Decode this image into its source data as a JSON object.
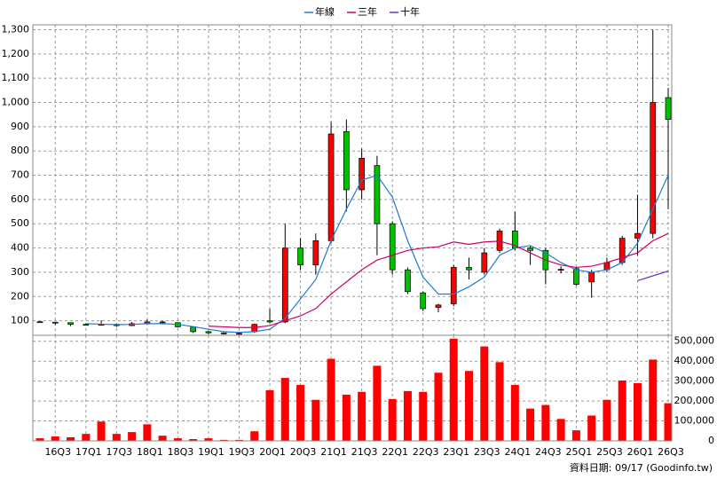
{
  "chart_data": [
    {
      "type": "candlestick",
      "categories": [
        null,
        "16Q3",
        null,
        "17Q1",
        null,
        "17Q3",
        null,
        "18Q1",
        null,
        "18Q3",
        null,
        "19Q1",
        null,
        "19Q3",
        null,
        "20Q1",
        null,
        "20Q3",
        null,
        "21Q1",
        null,
        "21Q3",
        null,
        "22Q1",
        null,
        "22Q3",
        null,
        "23Q1",
        null,
        "23Q3",
        null,
        "24Q1",
        null,
        "24Q3",
        null,
        "25Q1",
        null,
        "25Q3",
        null,
        "26Q1",
        null,
        "26Q3"
      ],
      "open": [
        96,
        94,
        92,
        85,
        84,
        85,
        80,
        88,
        95,
        92,
        75,
        55,
        50,
        46,
        55,
        100,
        95,
        400,
        330,
        430,
        880,
        640,
        740,
        500,
        310,
        215,
        155,
        170,
        320,
        300,
        390,
        470,
        400,
        390,
        310,
        315,
        260,
        310,
        340,
        440,
        460,
        1020
      ],
      "high": [
        98,
        95,
        93,
        88,
        102,
        88,
        95,
        105,
        100,
        93,
        76,
        58,
        52,
        52,
        88,
        150,
        500,
        440,
        460,
        920,
        930,
        810,
        780,
        510,
        320,
        220,
        170,
        330,
        360,
        400,
        480,
        550,
        410,
        400,
        325,
        320,
        310,
        360,
        450,
        620,
        1300,
        1060
      ],
      "low": [
        93,
        82,
        78,
        80,
        80,
        75,
        78,
        85,
        85,
        72,
        50,
        46,
        43,
        44,
        50,
        90,
        90,
        310,
        290,
        420,
        550,
        600,
        370,
        290,
        210,
        140,
        135,
        160,
        270,
        290,
        380,
        390,
        330,
        250,
        295,
        245,
        195,
        300,
        330,
        370,
        440,
        560
      ],
      "close": [
        94,
        92,
        85,
        83,
        85,
        80,
        88,
        95,
        92,
        75,
        55,
        50,
        46,
        48,
        85,
        95,
        400,
        330,
        430,
        870,
        640,
        770,
        500,
        310,
        220,
        150,
        165,
        320,
        310,
        380,
        470,
        400,
        390,
        310,
        312,
        250,
        300,
        340,
        440,
        460,
        1000,
        930
      ],
      "up_color": "#ff0000",
      "down_color": "#00c000",
      "series": [
        {
          "name": "年線",
          "color": "#1e7bd6",
          "values": [
            null,
            null,
            null,
            88,
            86,
            84,
            85,
            88,
            88,
            85,
            76,
            65,
            55,
            52,
            55,
            65,
            110,
            190,
            270,
            430,
            560,
            680,
            700,
            610,
            430,
            280,
            210,
            210,
            240,
            280,
            370,
            400,
            410,
            380,
            340,
            310,
            300,
            310,
            340,
            420,
            560,
            700
          ]
        },
        {
          "name": "三年",
          "color": "#cc0066",
          "values": [
            null,
            null,
            null,
            null,
            null,
            null,
            null,
            null,
            null,
            null,
            null,
            78,
            75,
            72,
            72,
            80,
            100,
            120,
            150,
            210,
            260,
            310,
            350,
            370,
            390,
            400,
            405,
            425,
            415,
            425,
            428,
            410,
            380,
            350,
            330,
            320,
            325,
            340,
            360,
            380,
            430,
            460
          ]
        },
        {
          "name": "十年",
          "color": "#7030c0",
          "values": [
            null,
            null,
            null,
            null,
            null,
            null,
            null,
            null,
            null,
            null,
            null,
            null,
            null,
            null,
            null,
            null,
            null,
            null,
            null,
            null,
            null,
            null,
            null,
            null,
            null,
            null,
            null,
            null,
            null,
            null,
            null,
            null,
            null,
            null,
            null,
            null,
            null,
            null,
            null,
            265,
            285,
            305
          ]
        }
      ],
      "ylim": [
        40,
        1320
      ],
      "yticks": [
        100,
        200,
        300,
        400,
        500,
        600,
        700,
        800,
        900,
        {
          "value": 1000,
          "label": "1,000"
        },
        {
          "value": 1100,
          "label": "1,100"
        },
        {
          "value": 1200,
          "label": "1,200"
        },
        {
          "value": 1300,
          "label": "1,300"
        }
      ],
      "grid": true,
      "legend": "top"
    },
    {
      "type": "bar",
      "color": "#ff0000",
      "values": [
        13000,
        22000,
        18000,
        35000,
        97000,
        35000,
        44000,
        83000,
        26000,
        13000,
        9000,
        13000,
        5000,
        5000,
        48000,
        254000,
        316000,
        281000,
        206000,
        412000,
        232000,
        246000,
        377000,
        210000,
        250000,
        246000,
        342000,
        513000,
        351000,
        474000,
        395000,
        281000,
        162000,
        180000,
        110000,
        53000,
        127000,
        206000,
        303000,
        290000,
        408000,
        189000
      ],
      "ylim": [
        0,
        530000
      ],
      "yticks": [
        0,
        {
          "value": 100000,
          "label": "100,000"
        },
        {
          "value": 200000,
          "label": "200,000"
        },
        {
          "value": 300000,
          "label": "300,000"
        },
        {
          "value": 400000,
          "label": "400,000"
        },
        {
          "value": 500000,
          "label": "500,000"
        }
      ],
      "grid": true,
      "source": "資料日期: 09/17  (Goodinfo.tw)"
    }
  ]
}
